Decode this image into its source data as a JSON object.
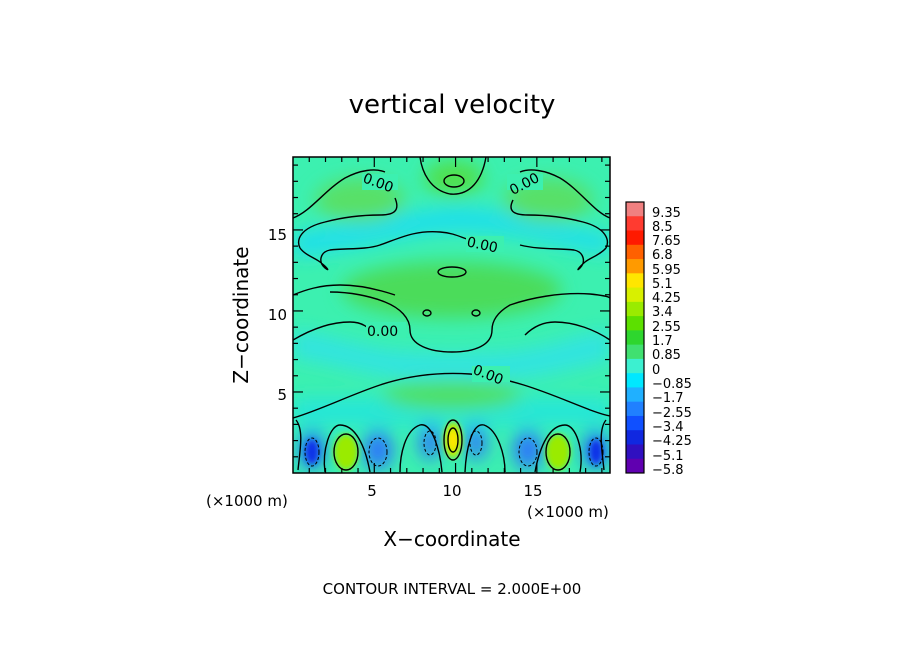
{
  "chart_data": {
    "type": "heatmap",
    "title": "vertical velocity",
    "xlabel": "X−coordinate",
    "ylabel": "Z−coordinate",
    "x_unit": "(×1000 m)",
    "y_unit": "(×1000 m)",
    "xlim": [
      0,
      19.5
    ],
    "ylim": [
      0,
      19.5
    ],
    "x_ticks": [
      "5",
      "10",
      "15"
    ],
    "x_tick_values": [
      5,
      10,
      15
    ],
    "y_ticks": [
      "5",
      "10",
      "15"
    ],
    "y_tick_values": [
      5,
      10,
      15
    ],
    "footer": "CONTOUR INTERVAL = 2.000E+00",
    "contour_labels": [
      "0.00",
      "0.00",
      "0.00",
      "0.00",
      "0.00"
    ],
    "colorbar": {
      "labels": [
        "9.35",
        "8.5",
        "7.65",
        "6.8",
        "5.95",
        "5.1",
        "4.25",
        "3.4",
        "2.55",
        "1.7",
        "0.85",
        "0",
        "−0.85",
        "−1.7",
        "−2.55",
        "−3.4",
        "−4.25",
        "−5.1",
        "−5.8"
      ],
      "colors": [
        "#f08080",
        "#ff3b30",
        "#ff1a00",
        "#ff6000",
        "#ff9a00",
        "#ffe600",
        "#d8f000",
        "#9aeb00",
        "#5ce000",
        "#2ed62e",
        "#40e070",
        "#3cf0d0",
        "#00e8ff",
        "#20b0ff",
        "#2080ff",
        "#1050ff",
        "#1028e0",
        "#3010c0",
        "#6000b0"
      ]
    },
    "features": [
      {
        "kind": "max",
        "x": 10,
        "z": 2.0,
        "value": 5.1
      },
      {
        "kind": "max",
        "x": 3.2,
        "z": 1.3,
        "value": 2.5
      },
      {
        "kind": "max",
        "x": 16.5,
        "z": 1.3,
        "value": 2.5
      },
      {
        "kind": "min",
        "x": 1.2,
        "z": 1.4,
        "value": -3.4
      },
      {
        "kind": "min",
        "x": 5.2,
        "z": 1.5,
        "value": -3.0
      },
      {
        "kind": "min",
        "x": 8.2,
        "z": 1.8,
        "value": -3.0
      },
      {
        "kind": "min",
        "x": 11.7,
        "z": 1.8,
        "value": -3.0
      },
      {
        "kind": "min",
        "x": 14.3,
        "z": 1.5,
        "value": -3.0
      },
      {
        "kind": "min",
        "x": 18.4,
        "z": 1.4,
        "value": -3.4
      }
    ]
  }
}
